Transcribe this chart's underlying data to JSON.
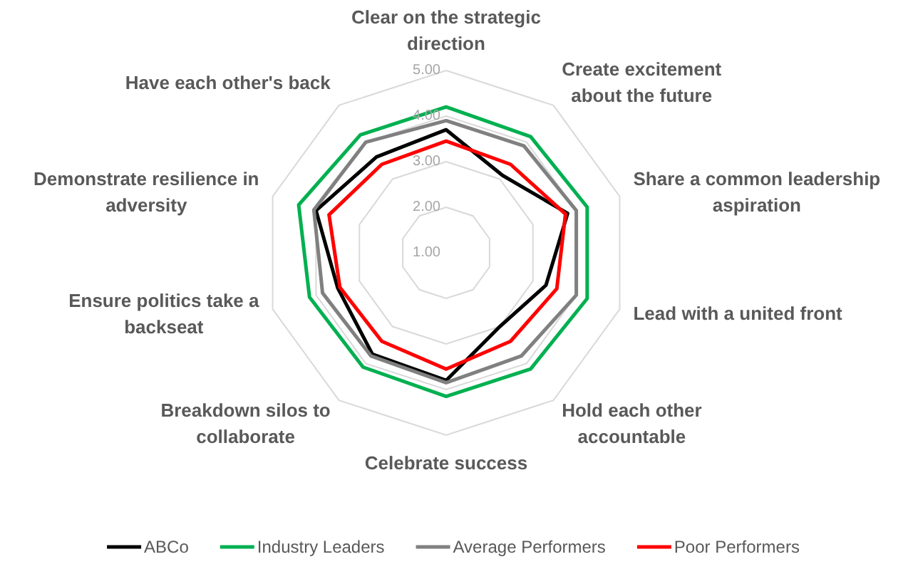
{
  "chart_data": {
    "type": "radar",
    "categories": [
      "Clear on the strategic direction",
      "Create excitement about the future",
      "Share a common leadership aspiration",
      "Lead with a united front",
      "Hold each other accountable",
      "Celebrate success",
      "Breakdown silos to collaborate",
      "Ensure politics take a backseat",
      "Demonstrate resilience in adversity",
      "Have each other's back"
    ],
    "series": [
      {
        "name": "ABCo",
        "color": "#000000",
        "values": [
          3.7,
          3.1,
          3.8,
          3.3,
          3.0,
          3.8,
          3.75,
          3.5,
          4.0,
          3.6
        ]
      },
      {
        "name": "Industry Leaders",
        "color": "#00b050",
        "values": [
          4.2,
          4.15,
          4.25,
          4.25,
          4.15,
          4.15,
          4.1,
          4.15,
          4.4,
          4.2
        ]
      },
      {
        "name": "Average Performers",
        "color": "#808080",
        "values": [
          3.9,
          3.9,
          4.0,
          4.0,
          3.8,
          3.85,
          3.8,
          3.85,
          4.05,
          4.0
        ]
      },
      {
        "name": "Poor Performers",
        "color": "#ff0000",
        "values": [
          3.45,
          3.4,
          3.75,
          3.55,
          3.4,
          3.55,
          3.4,
          3.45,
          3.7,
          3.4
        ]
      }
    ],
    "ylim": [
      1,
      5
    ],
    "yticks": [
      {
        "value": 1,
        "label": "1.00"
      },
      {
        "value": 2,
        "label": "2.00"
      },
      {
        "value": 3,
        "label": "3.00"
      },
      {
        "value": 4,
        "label": "4.00"
      },
      {
        "value": 5,
        "label": "5.00"
      }
    ],
    "grid": true,
    "legend": "bottom"
  }
}
